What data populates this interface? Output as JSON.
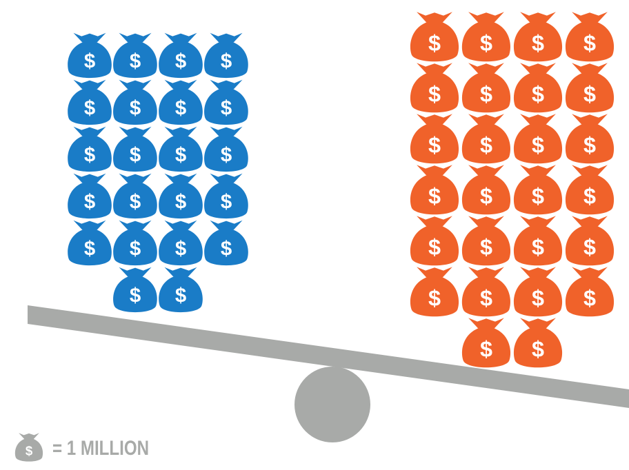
{
  "chart_data": {
    "type": "pictograph",
    "icon_symbol": "$",
    "unit_label": "= 1 MILLION",
    "values": [
      22,
      26
    ],
    "colors": [
      "#1a7cc7",
      "#f0622a"
    ],
    "icon_color": "#a8aaa8"
  }
}
